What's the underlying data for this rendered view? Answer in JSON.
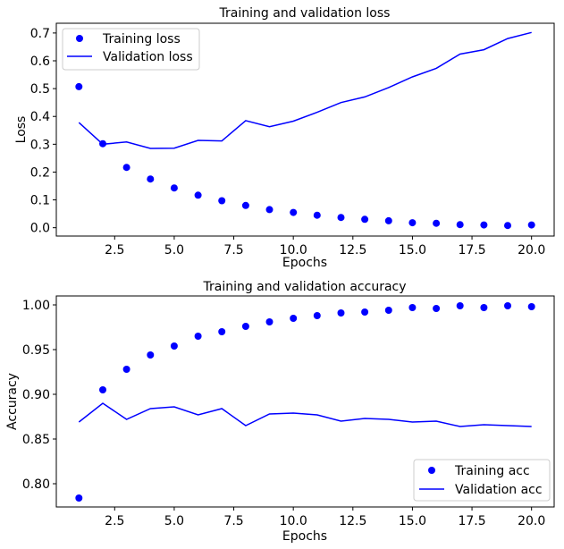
{
  "chart_data": [
    {
      "type": "line",
      "title": "Training and validation loss",
      "xlabel": "Epochs",
      "ylabel": "Loss",
      "xlim": [
        0.05,
        20.95
      ],
      "ylim": [
        -0.03,
        0.735
      ],
      "xticks": [
        2.5,
        5.0,
        7.5,
        10.0,
        12.5,
        15.0,
        17.5,
        20.0
      ],
      "xtick_labels": [
        "2.5",
        "5.0",
        "7.5",
        "10.0",
        "12.5",
        "15.0",
        "17.5",
        "20.0"
      ],
      "yticks": [
        0.0,
        0.1,
        0.2,
        0.3,
        0.4,
        0.5,
        0.6,
        0.7
      ],
      "ytick_labels": [
        "0.0",
        "0.1",
        "0.2",
        "0.3",
        "0.4",
        "0.5",
        "0.6",
        "0.7"
      ],
      "grid": false,
      "legend_position": "top-left",
      "x": [
        1,
        2,
        3,
        4,
        5,
        6,
        7,
        8,
        9,
        10,
        11,
        12,
        13,
        14,
        15,
        16,
        17,
        18,
        19,
        20
      ],
      "series": [
        {
          "name": "Training loss",
          "style": "points",
          "color": "#0000ff",
          "values": [
            0.507,
            0.302,
            0.217,
            0.175,
            0.143,
            0.117,
            0.097,
            0.08,
            0.065,
            0.055,
            0.045,
            0.037,
            0.03,
            0.025,
            0.018,
            0.016,
            0.011,
            0.01,
            0.008,
            0.01
          ]
        },
        {
          "name": "Validation loss",
          "style": "line",
          "color": "#0000ff",
          "values": [
            0.378,
            0.3,
            0.308,
            0.285,
            0.286,
            0.314,
            0.312,
            0.385,
            0.363,
            0.383,
            0.415,
            0.45,
            0.47,
            0.504,
            0.542,
            0.573,
            0.624,
            0.64,
            0.68,
            0.702
          ]
        }
      ]
    },
    {
      "type": "line",
      "title": "Training and validation accuracy",
      "xlabel": "Epochs",
      "ylabel": "Accuracy",
      "xlim": [
        0.05,
        20.95
      ],
      "ylim": [
        0.774,
        1.01
      ],
      "xticks": [
        2.5,
        5.0,
        7.5,
        10.0,
        12.5,
        15.0,
        17.5,
        20.0
      ],
      "xtick_labels": [
        "2.5",
        "5.0",
        "7.5",
        "10.0",
        "12.5",
        "15.0",
        "17.5",
        "20.0"
      ],
      "yticks": [
        0.8,
        0.85,
        0.9,
        0.95,
        1.0
      ],
      "ytick_labels": [
        "0.80",
        "0.85",
        "0.90",
        "0.95",
        "1.00"
      ],
      "grid": false,
      "legend_position": "bottom-right",
      "x": [
        1,
        2,
        3,
        4,
        5,
        6,
        7,
        8,
        9,
        10,
        11,
        12,
        13,
        14,
        15,
        16,
        17,
        18,
        19,
        20
      ],
      "series": [
        {
          "name": "Training acc",
          "style": "points",
          "color": "#0000ff",
          "values": [
            0.784,
            0.905,
            0.928,
            0.944,
            0.954,
            0.965,
            0.97,
            0.976,
            0.981,
            0.985,
            0.988,
            0.991,
            0.992,
            0.994,
            0.997,
            0.996,
            0.999,
            0.997,
            0.999,
            0.998
          ]
        },
        {
          "name": "Validation acc",
          "style": "line",
          "color": "#0000ff",
          "values": [
            0.869,
            0.89,
            0.872,
            0.884,
            0.886,
            0.877,
            0.884,
            0.865,
            0.878,
            0.879,
            0.877,
            0.87,
            0.873,
            0.872,
            0.869,
            0.87,
            0.864,
            0.866,
            0.865,
            0.864
          ]
        }
      ]
    }
  ]
}
